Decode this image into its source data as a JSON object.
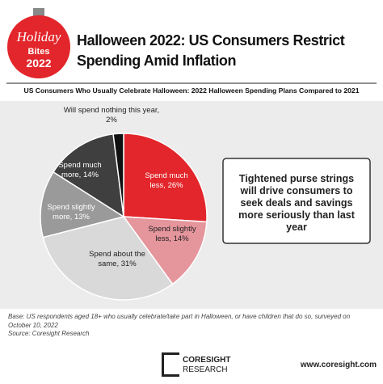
{
  "header": {
    "badge": [
      "Holiday",
      "Bites",
      "2022"
    ],
    "title": "Halloween 2022: US Consumers Restrict Spending Amid Inflation"
  },
  "chart_data": {
    "type": "pie",
    "title": "US Consumers Who Usually Celebrate Halloween: 2022 Halloween Spending Plans Compared to 2021",
    "values": [
      26,
      14,
      31,
      13,
      14,
      2
    ],
    "value_labels": [
      "Spend much less, 26%",
      "Spend slightly less, 14%",
      "Spend about the same, 31%",
      "Spend slightly more, 13%",
      "Spend much more, 14%",
      "Will spend nothing this year, 2%"
    ],
    "colors": [
      "#e2262b",
      "#e5959c",
      "#d9d9d9",
      "#9a9a9a",
      "#3f3f3f",
      "#111111"
    ]
  },
  "callout": "Tightened purse strings will drive consumers to seek deals and savings more seriously than last year",
  "footer": {
    "note": "Base: US respondents aged 18+ who usually celebrate/take part in Halloween, or have children that do so, surveyed on October 10, 2022",
    "source": "Source: Coresight Research",
    "logo": [
      "CORESIGHT",
      "RESEARCH"
    ],
    "url": "www.coresight.com"
  }
}
